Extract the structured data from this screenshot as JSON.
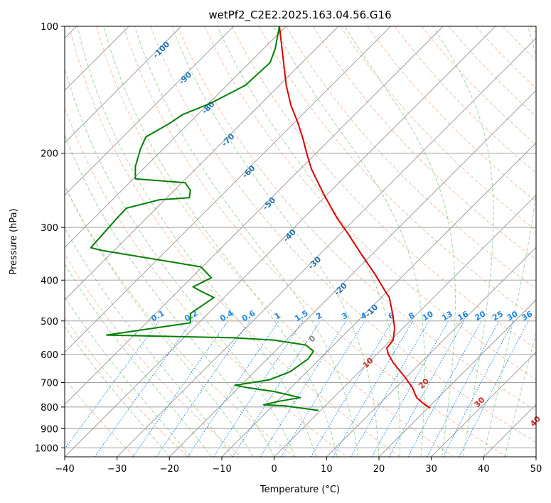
{
  "chart_data": {
    "type": "line",
    "title": "wetPf2_C2E2.2025.163.04.56.G16",
    "xlabel": "Temperature (°C)",
    "ylabel": "Pressure (hPa)",
    "xlim": [
      -40,
      50
    ],
    "ylim": [
      1050,
      100
    ],
    "y_scale": "log",
    "grid": true,
    "x_ticks": [
      "−40",
      "−30",
      "−20",
      "−10",
      "0",
      "10",
      "20",
      "30",
      "40",
      "50"
    ],
    "x_tick_values": [
      -40,
      -30,
      -20,
      -10,
      0,
      10,
      20,
      30,
      40,
      50
    ],
    "y_ticks": [
      "100",
      "200",
      "300",
      "400",
      "500",
      "600",
      "700",
      "800",
      "900",
      "1000"
    ],
    "y_tick_values": [
      100,
      200,
      300,
      400,
      500,
      600,
      700,
      800,
      900,
      1000
    ],
    "isotherm_labels": [
      "-100",
      "-90",
      "-80",
      "-70",
      "-60",
      "-50",
      "-40",
      "-30",
      "-20",
      "-10"
    ],
    "isotherm_values": [
      -100,
      -90,
      -80,
      -70,
      -60,
      -50,
      -40,
      -30,
      -20,
      -10
    ],
    "mixing_ratio_labels": [
      "0.1",
      "0.2",
      "0.4",
      "0.6",
      "1",
      "1.5",
      "2",
      "3",
      "4",
      "6",
      "8",
      "10",
      "13",
      "16",
      "20",
      "25",
      "30",
      "36"
    ],
    "mixing_ratio_values": [
      0.1,
      0.2,
      0.4,
      0.6,
      1,
      1.5,
      2,
      3,
      4,
      6,
      8,
      10,
      13,
      16,
      20,
      25,
      30,
      36
    ],
    "moist_adiabat_labels": [
      "0",
      "10",
      "20",
      "30",
      "40"
    ],
    "moist_adiabat_values": [
      0,
      10,
      20,
      30,
      40
    ],
    "colors": {
      "temperature": "#e00000",
      "dewpoint": "#008000",
      "isotherm": "#a0a0a0",
      "dry_adiabat": "#f4a582",
      "moist_adiabat": "#8fc98f",
      "mixing_ratio": "#1e88e5",
      "isotherm_label": "#1f6fb0",
      "moist_label_warm": "#d62728",
      "moist_label_zero": "#7f7f7f"
    },
    "series": [
      {
        "key": "temperature",
        "x": [
          1,
          1.5,
          1.8,
          2.3,
          3.2,
          4.5,
          5.5,
          6.2,
          7.1,
          9.3,
          10.8,
          12.0,
          14.2,
          16.5,
          19.4,
          21.2,
          22.0,
          22.3,
          22.6,
          23.0,
          22.7,
          21.5,
          21.8,
          22.8,
          25.0,
          26.4,
          27.2,
          28.5,
          29.8
        ],
        "y": [
          100,
          113,
          122,
          138,
          154,
          169,
          185,
          200,
          218,
          248,
          268,
          285,
          312,
          345,
          390,
          425,
          440,
          460,
          480,
          520,
          555,
          580,
          600,
          630,
          680,
          720,
          760,
          785,
          805
        ]
      },
      {
        "key": "dewpoint",
        "x": [
          1,
          0.2,
          -0.8,
          -5.5,
          -12.0,
          -17.5,
          -20.0,
          -24.5,
          -25.5,
          -26.5,
          -26.5,
          -17.0,
          -16.0,
          -16.2,
          -22.0,
          -28.2,
          -30.0,
          -35.0,
          -33.0,
          -14.0,
          -12.0,
          -15.5,
          -14.0,
          -11.5,
          -16.0,
          -16.0,
          -32.0,
          -8.0,
          0.0,
          6.0,
          7.5,
          6.5,
          3.0,
          -1.0,
          -7.5,
          -5.0,
          0.0,
          5.0,
          1.0,
          -2.0,
          2.0,
          8.5
        ],
        "y": [
          100,
          113,
          122,
          138,
          152,
          162,
          170,
          183,
          195,
          215,
          230,
          235,
          245,
          255,
          258,
          270,
          285,
          335,
          340,
          372,
          395,
          415,
          425,
          440,
          480,
          505,
          540,
          548,
          555,
          570,
          590,
          615,
          660,
          690,
          710,
          720,
          735,
          760,
          775,
          790,
          795,
          815
        ]
      }
    ]
  }
}
